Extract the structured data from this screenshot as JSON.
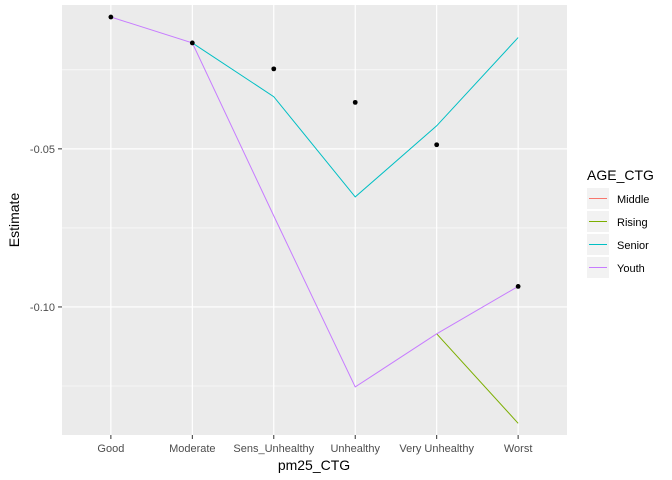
{
  "chart_data": {
    "type": "line",
    "title": "",
    "xlabel": "pm25_CTG",
    "ylabel": "Estimate",
    "categories": [
      "Good",
      "Moderate",
      "Sens_Unhealthy",
      "Unhealthy",
      "Very Unhealthy",
      "Worst"
    ],
    "ylim": [
      -0.1405,
      -0.0045
    ],
    "y_ticks": [
      -0.05,
      -0.1
    ],
    "y_tick_labels": [
      "-0.05",
      "-0.10"
    ],
    "grid": true,
    "legend": {
      "title": "AGE_CTG",
      "position": "right"
    },
    "series": [
      {
        "name": "Middle",
        "color": "#F8766D",
        "values": [
          null,
          null,
          null,
          null,
          null,
          null
        ]
      },
      {
        "name": "Rising",
        "color": "#7CAE00",
        "values": [
          null,
          null,
          null,
          null,
          -0.1085,
          -0.1368
        ]
      },
      {
        "name": "Senior",
        "color": "#00BFC4",
        "values": [
          null,
          -0.0165,
          -0.0335,
          -0.0652,
          -0.0427,
          -0.0148
        ]
      },
      {
        "name": "Youth",
        "color": "#C77CFF",
        "values": [
          -0.0083,
          -0.0165,
          -0.0712,
          -0.1253,
          -0.1085,
          -0.0935
        ]
      }
    ],
    "points": [
      {
        "category": "Good",
        "y": -0.0083
      },
      {
        "category": "Moderate",
        "y": -0.0165
      },
      {
        "category": "Sens_Unhealthy",
        "y": -0.0247
      },
      {
        "category": "Unhealthy",
        "y": -0.0353
      },
      {
        "category": "Very Unhealthy",
        "y": -0.0487
      },
      {
        "category": "Worst",
        "y": -0.0935
      }
    ]
  }
}
